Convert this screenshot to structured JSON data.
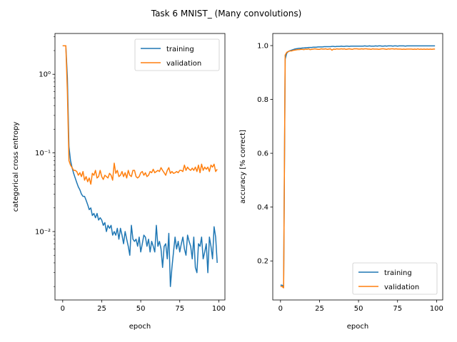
{
  "figure": {
    "title": "Task 6 MNIST_ (Many convolutions)"
  },
  "colors": {
    "training": "#1f77b4",
    "validation": "#ff7f0e",
    "axes": "#000000",
    "legend_border": "#cccccc"
  },
  "chart_data": [
    {
      "type": "line",
      "title": "",
      "xlabel": "epoch",
      "ylabel": "categorical cross entropy",
      "yscale": "log",
      "xlim": [
        -4.95,
        103.95
      ],
      "ylim": [
        0.00135,
        3.3
      ],
      "xticks": [
        0,
        25,
        50,
        75,
        100
      ],
      "xtick_labels": [
        "0",
        "25",
        "50",
        "75",
        "100"
      ],
      "yticks": [
        0.01,
        0.1,
        1
      ],
      "ytick_labels": [
        "10⁻²",
        "10⁻¹",
        "10⁰"
      ],
      "grid": false,
      "legend": "top-right",
      "series": [
        {
          "name": "training",
          "color": "#1f77b4",
          "x": [
            0,
            1,
            2,
            3,
            4,
            5,
            6,
            7,
            8,
            9,
            10,
            11,
            12,
            13,
            14,
            15,
            16,
            17,
            18,
            19,
            20,
            21,
            22,
            23,
            24,
            25,
            26,
            27,
            28,
            29,
            30,
            31,
            32,
            33,
            34,
            35,
            36,
            37,
            38,
            39,
            40,
            41,
            42,
            43,
            44,
            45,
            46,
            47,
            48,
            49,
            50,
            51,
            52,
            53,
            54,
            55,
            56,
            57,
            58,
            59,
            60,
            61,
            62,
            63,
            64,
            65,
            66,
            67,
            68,
            69,
            70,
            71,
            72,
            73,
            74,
            75,
            76,
            77,
            78,
            79,
            80,
            81,
            82,
            83,
            84,
            85,
            86,
            87,
            88,
            89,
            90,
            91,
            92,
            93,
            94,
            95,
            96,
            97,
            98,
            99
          ],
          "values": [
            2.3,
            2.3,
            2.3,
            0.9,
            0.12,
            0.08,
            0.065,
            0.055,
            0.048,
            0.042,
            0.037,
            0.034,
            0.03,
            0.028,
            0.028,
            0.025,
            0.022,
            0.019,
            0.02,
            0.016,
            0.017,
            0.015,
            0.017,
            0.014,
            0.015,
            0.014,
            0.012,
            0.013,
            0.01,
            0.012,
            0.011,
            0.012,
            0.009,
            0.01,
            0.009,
            0.011,
            0.008,
            0.011,
            0.009,
            0.007,
            0.01,
            0.008,
            0.0065,
            0.005,
            0.012,
            0.008,
            0.0075,
            0.008,
            0.0065,
            0.0085,
            0.0055,
            0.007,
            0.009,
            0.0085,
            0.0065,
            0.008,
            0.0055,
            0.0075,
            0.0065,
            0.0055,
            0.012,
            0.0065,
            0.0075,
            0.006,
            0.0035,
            0.0065,
            0.007,
            0.0045,
            0.0095,
            0.002,
            0.0035,
            0.0055,
            0.0085,
            0.006,
            0.0075,
            0.0055,
            0.007,
            0.0085,
            0.006,
            0.005,
            0.009,
            0.0075,
            0.0065,
            0.0045,
            0.0085,
            0.0035,
            0.003,
            0.007,
            0.0065,
            0.0085,
            0.0045,
            0.0055,
            0.007,
            0.003,
            0.0085,
            0.0065,
            0.0045,
            0.0115,
            0.0085,
            0.004
          ]
        },
        {
          "name": "validation",
          "color": "#ff7f0e",
          "x": [
            0,
            1,
            2,
            3,
            4,
            5,
            6,
            7,
            8,
            9,
            10,
            11,
            12,
            13,
            14,
            15,
            16,
            17,
            18,
            19,
            20,
            21,
            22,
            23,
            24,
            25,
            26,
            27,
            28,
            29,
            30,
            31,
            32,
            33,
            34,
            35,
            36,
            37,
            38,
            39,
            40,
            41,
            42,
            43,
            44,
            45,
            46,
            47,
            48,
            49,
            50,
            51,
            52,
            53,
            54,
            55,
            56,
            57,
            58,
            59,
            60,
            61,
            62,
            63,
            64,
            65,
            66,
            67,
            68,
            69,
            70,
            71,
            72,
            73,
            74,
            75,
            76,
            77,
            78,
            79,
            80,
            81,
            82,
            83,
            84,
            85,
            86,
            87,
            88,
            89,
            90,
            91,
            92,
            93,
            94,
            95,
            96,
            97,
            98,
            99
          ],
          "values": [
            2.3,
            2.3,
            2.3,
            0.6,
            0.08,
            0.07,
            0.065,
            0.06,
            0.06,
            0.058,
            0.052,
            0.056,
            0.05,
            0.058,
            0.045,
            0.05,
            0.043,
            0.048,
            0.04,
            0.055,
            0.052,
            0.06,
            0.048,
            0.05,
            0.06,
            0.05,
            0.046,
            0.052,
            0.05,
            0.048,
            0.055,
            0.052,
            0.045,
            0.074,
            0.055,
            0.06,
            0.05,
            0.052,
            0.058,
            0.05,
            0.056,
            0.048,
            0.06,
            0.052,
            0.05,
            0.06,
            0.06,
            0.05,
            0.048,
            0.05,
            0.056,
            0.058,
            0.052,
            0.056,
            0.05,
            0.052,
            0.058,
            0.056,
            0.062,
            0.056,
            0.058,
            0.06,
            0.058,
            0.065,
            0.06,
            0.056,
            0.052,
            0.06,
            0.065,
            0.055,
            0.058,
            0.055,
            0.056,
            0.058,
            0.056,
            0.06,
            0.06,
            0.058,
            0.07,
            0.06,
            0.066,
            0.062,
            0.06,
            0.064,
            0.06,
            0.066,
            0.058,
            0.07,
            0.056,
            0.072,
            0.06,
            0.066,
            0.062,
            0.066,
            0.058,
            0.07,
            0.066,
            0.072,
            0.058,
            0.062
          ]
        }
      ]
    },
    {
      "type": "line",
      "title": "",
      "xlabel": "epoch",
      "ylabel": "accuracy [% correct]",
      "yscale": "linear",
      "xlim": [
        -4.95,
        103.95
      ],
      "ylim": [
        0.055,
        1.045
      ],
      "xticks": [
        0,
        25,
        50,
        75,
        100
      ],
      "xtick_labels": [
        "0",
        "25",
        "50",
        "75",
        "100"
      ],
      "yticks": [
        0.2,
        0.4,
        0.6,
        0.8,
        1.0
      ],
      "ytick_labels": [
        "0.2",
        "0.4",
        "0.6",
        "0.8",
        "1.0"
      ],
      "grid": false,
      "legend": "bottom-right",
      "series": [
        {
          "name": "training",
          "color": "#1f77b4",
          "x": [
            0,
            1,
            2,
            3,
            4,
            5,
            6,
            7,
            8,
            9,
            10,
            11,
            12,
            13,
            14,
            15,
            16,
            17,
            18,
            19,
            20,
            21,
            22,
            23,
            24,
            25,
            26,
            27,
            28,
            29,
            30,
            31,
            32,
            33,
            34,
            35,
            36,
            37,
            38,
            39,
            40,
            41,
            42,
            43,
            44,
            45,
            46,
            47,
            48,
            49,
            50,
            51,
            52,
            53,
            54,
            55,
            56,
            57,
            58,
            59,
            60,
            61,
            62,
            63,
            64,
            65,
            66,
            67,
            68,
            69,
            70,
            71,
            72,
            73,
            74,
            75,
            76,
            77,
            78,
            79,
            80,
            81,
            82,
            83,
            84,
            85,
            86,
            87,
            88,
            89,
            90,
            91,
            92,
            93,
            94,
            95,
            96,
            97,
            98,
            99
          ],
          "values": [
            0.11,
            0.11,
            0.105,
            0.95,
            0.972,
            0.978,
            0.981,
            0.983,
            0.985,
            0.987,
            0.988,
            0.989,
            0.99,
            0.99,
            0.991,
            0.991,
            0.992,
            0.992,
            0.993,
            0.993,
            0.993,
            0.994,
            0.994,
            0.994,
            0.995,
            0.995,
            0.995,
            0.995,
            0.996,
            0.996,
            0.996,
            0.996,
            0.996,
            0.997,
            0.997,
            0.996,
            0.997,
            0.997,
            0.997,
            0.998,
            0.997,
            0.997,
            0.998,
            0.998,
            0.997,
            0.998,
            0.998,
            0.998,
            0.998,
            0.998,
            0.998,
            0.998,
            0.998,
            0.998,
            0.999,
            0.998,
            0.998,
            0.999,
            0.998,
            0.998,
            0.998,
            0.999,
            0.998,
            0.999,
            0.999,
            0.998,
            0.998,
            0.999,
            0.998,
            0.999,
            0.999,
            0.999,
            0.998,
            0.999,
            0.999,
            0.998,
            0.999,
            0.999,
            0.999,
            0.999,
            0.998,
            0.999,
            0.999,
            0.999,
            0.999,
            0.999,
            0.999,
            0.999,
            0.999,
            0.999,
            0.999,
            0.999,
            0.999,
            0.999,
            0.999,
            0.999,
            0.999,
            0.999,
            0.999,
            0.999
          ]
        },
        {
          "name": "validation",
          "color": "#ff7f0e",
          "x": [
            0,
            1,
            2,
            3,
            4,
            5,
            6,
            7,
            8,
            9,
            10,
            11,
            12,
            13,
            14,
            15,
            16,
            17,
            18,
            19,
            20,
            21,
            22,
            23,
            24,
            25,
            26,
            27,
            28,
            29,
            30,
            31,
            32,
            33,
            34,
            35,
            36,
            37,
            38,
            39,
            40,
            41,
            42,
            43,
            44,
            45,
            46,
            47,
            48,
            49,
            50,
            51,
            52,
            53,
            54,
            55,
            56,
            57,
            58,
            59,
            60,
            61,
            62,
            63,
            64,
            65,
            66,
            67,
            68,
            69,
            70,
            71,
            72,
            73,
            74,
            75,
            76,
            77,
            78,
            79,
            80,
            81,
            82,
            83,
            84,
            85,
            86,
            87,
            88,
            89,
            90,
            91,
            92,
            93,
            94,
            95,
            96,
            97,
            98,
            99
          ],
          "values": [
            0.105,
            0.105,
            0.1,
            0.965,
            0.975,
            0.978,
            0.98,
            0.98,
            0.982,
            0.983,
            0.984,
            0.985,
            0.985,
            0.986,
            0.986,
            0.985,
            0.987,
            0.986,
            0.988,
            0.985,
            0.986,
            0.987,
            0.988,
            0.987,
            0.986,
            0.986,
            0.988,
            0.987,
            0.987,
            0.988,
            0.986,
            0.987,
            0.988,
            0.983,
            0.987,
            0.986,
            0.988,
            0.987,
            0.987,
            0.988,
            0.987,
            0.988,
            0.986,
            0.987,
            0.988,
            0.987,
            0.986,
            0.988,
            0.988,
            0.988,
            0.987,
            0.987,
            0.988,
            0.987,
            0.988,
            0.988,
            0.987,
            0.987,
            0.986,
            0.988,
            0.987,
            0.987,
            0.987,
            0.986,
            0.987,
            0.988,
            0.988,
            0.987,
            0.986,
            0.988,
            0.987,
            0.988,
            0.988,
            0.987,
            0.988,
            0.987,
            0.987,
            0.987,
            0.986,
            0.987,
            0.986,
            0.987,
            0.987,
            0.987,
            0.987,
            0.986,
            0.987,
            0.986,
            0.988,
            0.986,
            0.987,
            0.986,
            0.987,
            0.986,
            0.987,
            0.986,
            0.987,
            0.986,
            0.987,
            0.987
          ]
        }
      ]
    }
  ]
}
